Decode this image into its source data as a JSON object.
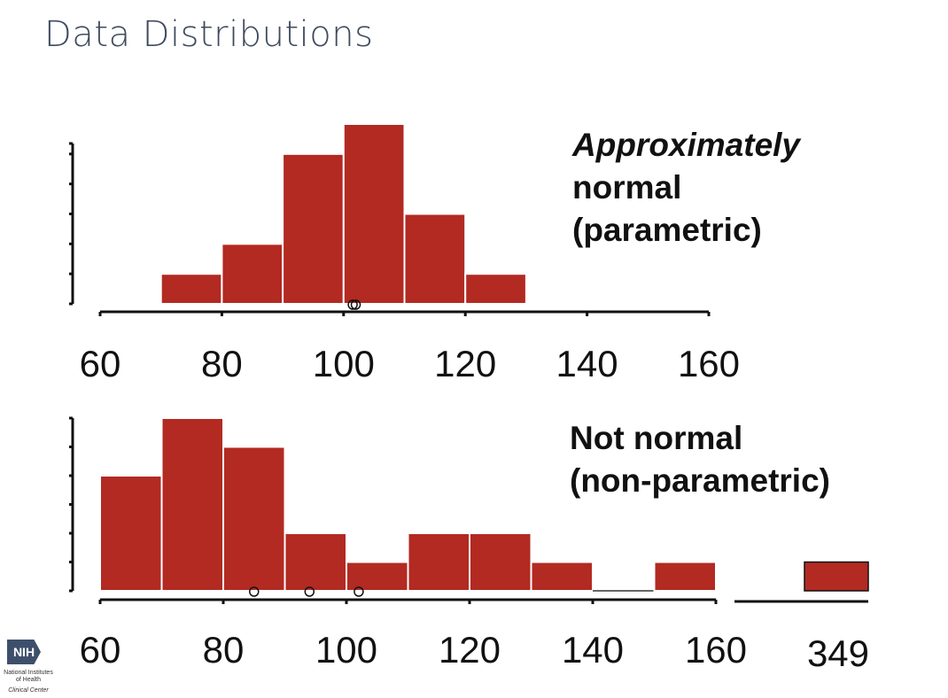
{
  "slide": {
    "title": "Data Distributions"
  },
  "logo": {
    "mark": "NIH",
    "line1": "National Institutes of Health",
    "line2": "Clinical Center"
  },
  "chart_data": [
    {
      "type": "bar",
      "annotation": [
        "Approximately",
        "normal",
        "(parametric)"
      ],
      "bin_edges": [
        70,
        80,
        90,
        100,
        110,
        120,
        130
      ],
      "values": [
        1,
        2,
        5,
        6,
        3,
        1
      ],
      "xlim": [
        60,
        160
      ],
      "ylim": [
        0,
        6
      ],
      "x_ticks": [
        60,
        80,
        100,
        120,
        140,
        160
      ],
      "y_ticks": [
        0,
        1,
        2,
        3,
        4,
        5,
        6
      ],
      "mean_markers": [
        101.5,
        102
      ],
      "color": "#b22a22"
    },
    {
      "type": "bar",
      "annotation": [
        "Not normal",
        "(non-parametric)"
      ],
      "bin_edges": [
        60,
        70,
        80,
        90,
        100,
        110,
        120,
        130,
        140,
        150,
        160
      ],
      "values": [
        4,
        6,
        5,
        2,
        1,
        2,
        2,
        1,
        0,
        1
      ],
      "outlier_bin": {
        "label": "349",
        "value": 1
      },
      "xlim": [
        60,
        160
      ],
      "ylim": [
        0,
        6
      ],
      "x_ticks": [
        60,
        80,
        100,
        120,
        140,
        160
      ],
      "y_ticks": [
        0,
        1,
        2,
        3,
        4,
        5,
        6
      ],
      "mean_markers": [
        85,
        94,
        102
      ],
      "color": "#b22a22"
    }
  ]
}
